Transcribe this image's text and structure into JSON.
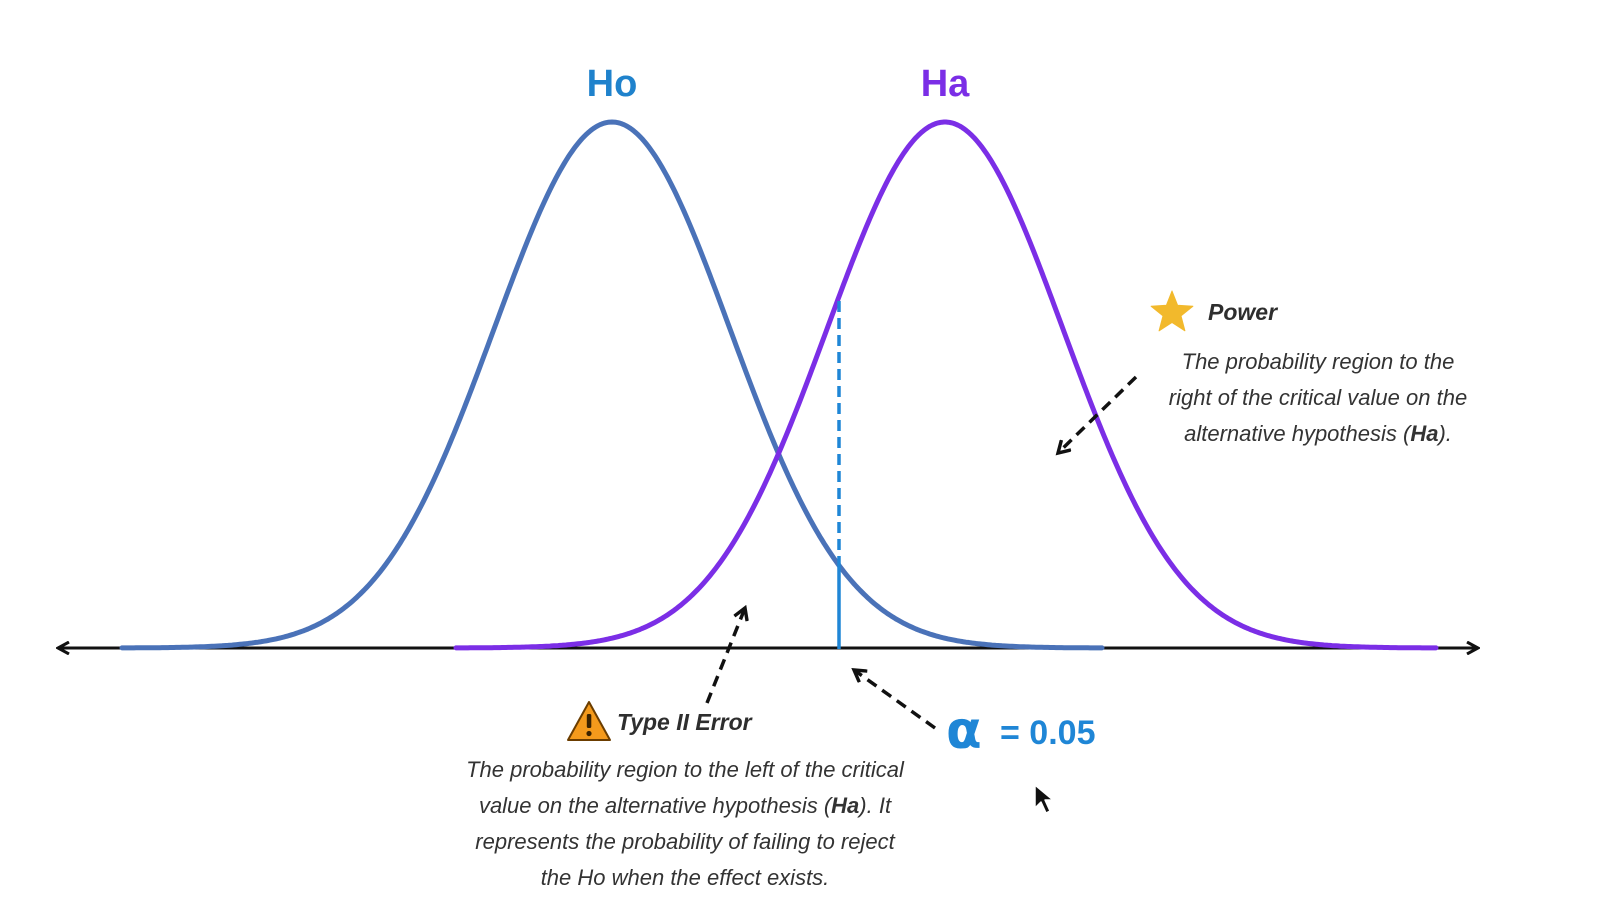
{
  "labels": {
    "ho": "Ho",
    "ha": "Ha"
  },
  "power": {
    "title": "Power",
    "line1": "The probability region to the",
    "line2": "right of the critical value on the",
    "line3_pre": "alternative hypothesis (",
    "line3_bold": "Ha",
    "line3_post": ")."
  },
  "type2": {
    "title": "Type II Error",
    "line1": "The probability region to the left of the critical",
    "line2_pre": "value on the alternative hypothesis (",
    "line2_bold": "Ha",
    "line2_post": "). It",
    "line3": "represents the probability of failing to reject",
    "line4": "the Ho when the effect exists."
  },
  "alpha": {
    "symbol": "α",
    "text": "= 0.05"
  },
  "colors": {
    "ho_curve": "#4a72b8",
    "ha_curve": "#7b2ee6",
    "critical_line": "#1f86d6",
    "ho_label": "#1f82cc",
    "ha_label": "#7b2ee6",
    "alpha": "#1f86d6",
    "star": "#f2b92c",
    "warning": "#f49a1c",
    "axis": "#111111"
  },
  "icons": {
    "power": "star-icon",
    "type2": "warning-icon",
    "cursor": "mouse-cursor-icon"
  }
}
